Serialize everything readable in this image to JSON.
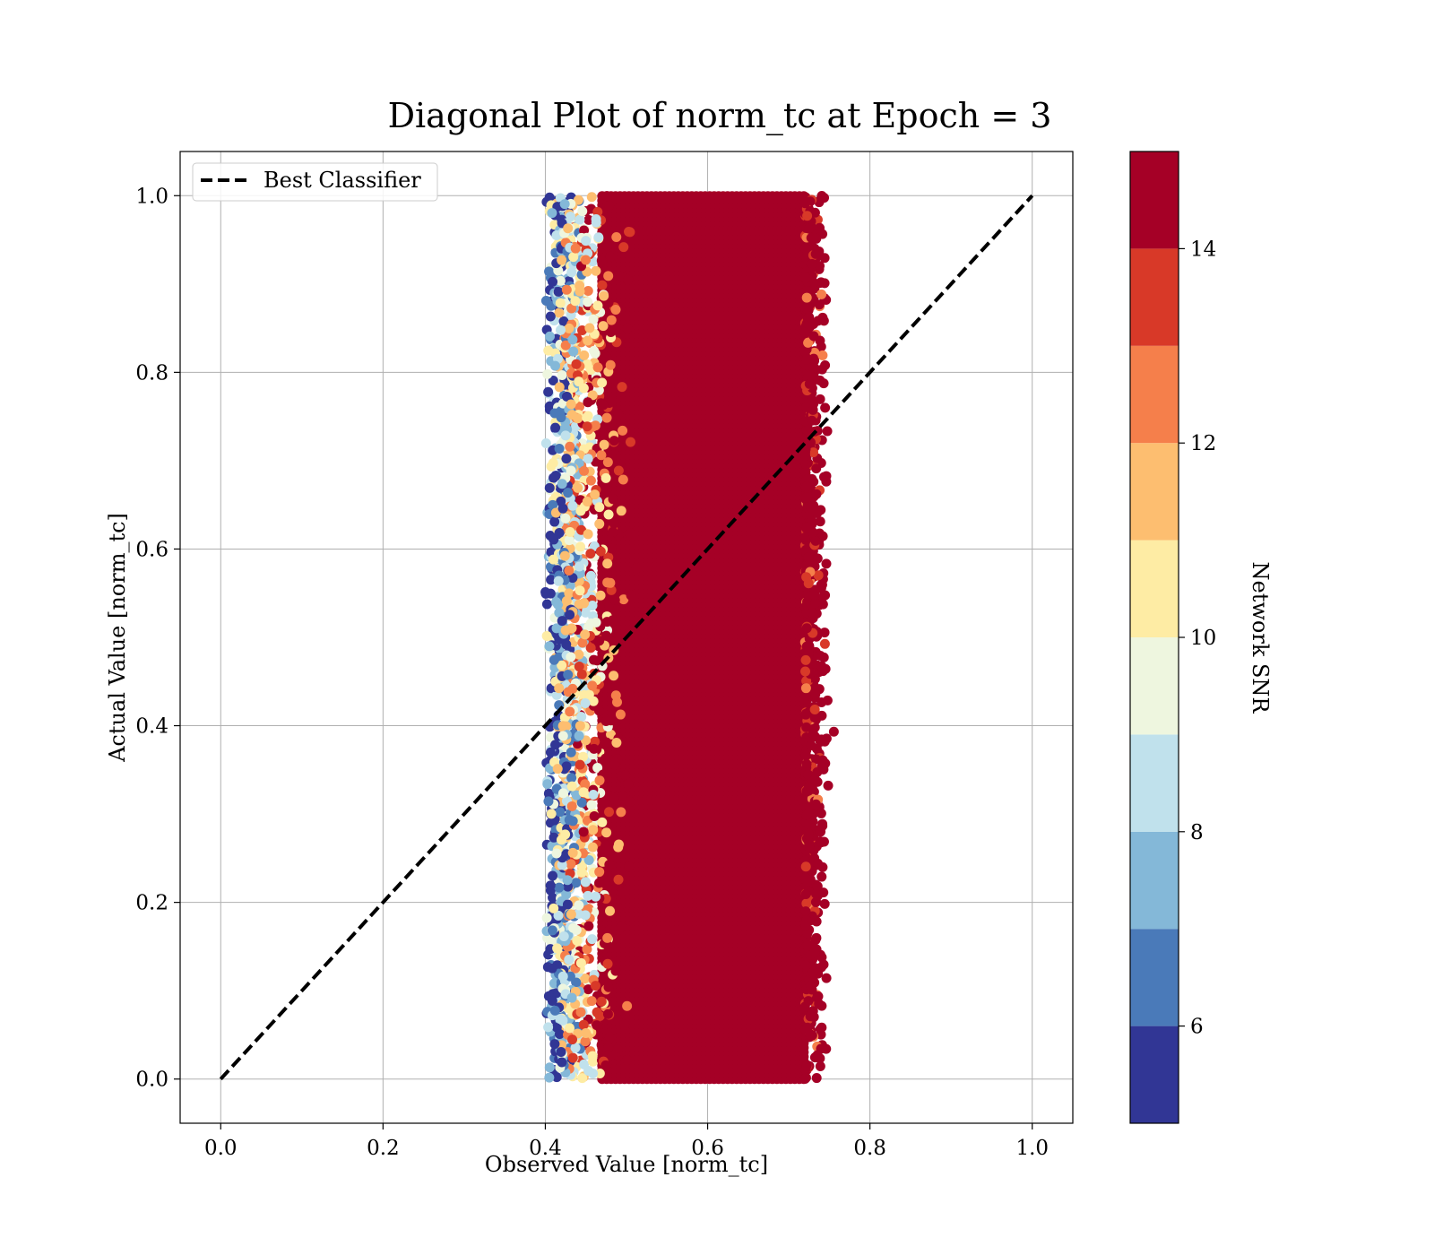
{
  "chart_data": {
    "type": "scatter",
    "title": "Diagonal Plot of norm_tc at Epoch = 3",
    "xlabel": "Observed Value [norm_tc]",
    "ylabel": "Actual Value [norm_tc]",
    "xlim": [
      -0.05,
      1.05
    ],
    "ylim": [
      -0.05,
      1.05
    ],
    "x_ticks": [
      "0.0",
      "0.2",
      "0.4",
      "0.6",
      "0.8",
      "1.0"
    ],
    "y_ticks": [
      "0.0",
      "0.2",
      "0.4",
      "0.6",
      "0.8",
      "1.0"
    ],
    "grid": true,
    "legend": {
      "position": "top-left",
      "entries": [
        "Best Classifier"
      ]
    },
    "reference_line": {
      "name": "Best Classifier",
      "style": "dashed",
      "color": "#000000",
      "x": [
        0,
        1
      ],
      "y": [
        0,
        1
      ]
    },
    "scatter": {
      "x_range_observed": [
        0.4,
        0.76
      ],
      "x_core_range": [
        0.47,
        0.72
      ],
      "y_range": [
        0.0,
        1.0
      ],
      "color_by": "Network SNR",
      "dominant_value": 15
    },
    "colorbar": {
      "label": "Network SNR",
      "min": 5,
      "max": 15,
      "ticks": [
        "6",
        "8",
        "10",
        "12",
        "14"
      ],
      "bins": [
        {
          "from": 5,
          "to": 6,
          "color": "#313695"
        },
        {
          "from": 6,
          "to": 7,
          "color": "#4a7ab9"
        },
        {
          "from": 7,
          "to": 8,
          "color": "#84b8d8"
        },
        {
          "from": 8,
          "to": 9,
          "color": "#c0e1ec"
        },
        {
          "from": 9,
          "to": 10,
          "color": "#eef6df"
        },
        {
          "from": 10,
          "to": 11,
          "color": "#feeca4"
        },
        {
          "from": 11,
          "to": 12,
          "color": "#fdbe70"
        },
        {
          "from": 12,
          "to": 13,
          "color": "#f57f4b"
        },
        {
          "from": 13,
          "to": 14,
          "color": "#d83928"
        },
        {
          "from": 14,
          "to": 15,
          "color": "#a50026"
        }
      ]
    }
  }
}
